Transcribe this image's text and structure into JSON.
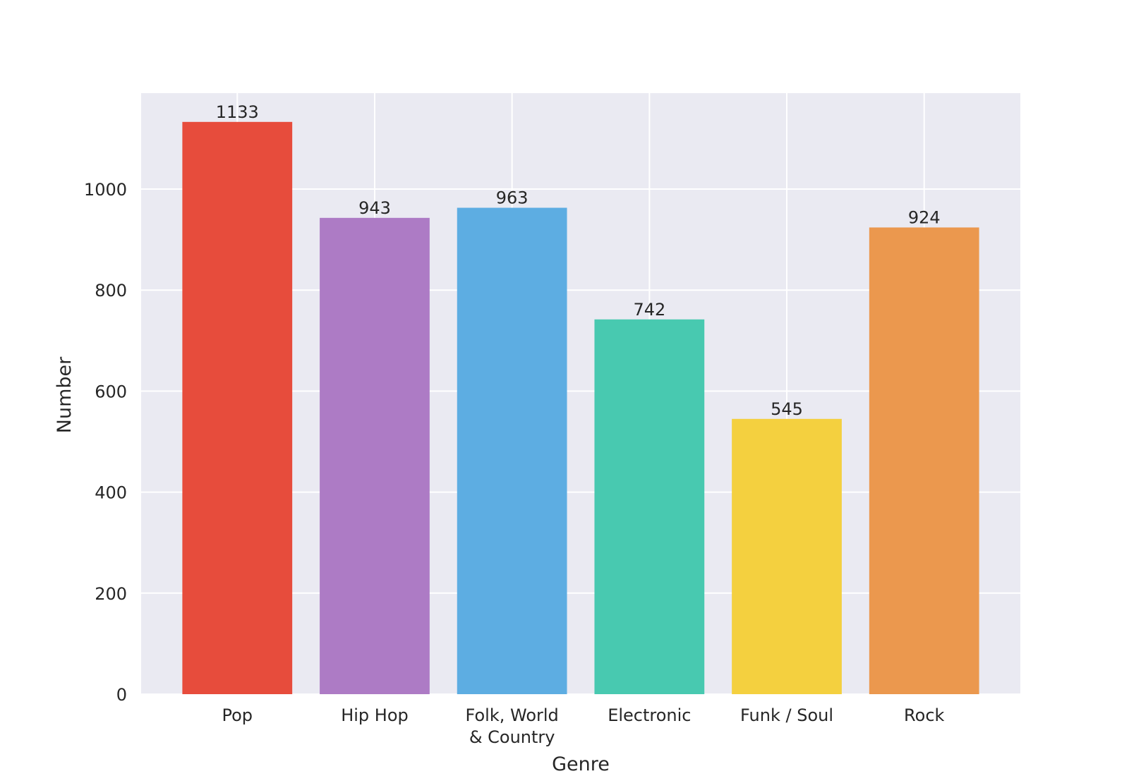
{
  "chart_data": {
    "type": "bar",
    "categories": [
      [
        "Pop"
      ],
      [
        "Hip Hop"
      ],
      [
        "Folk, World",
        "& Country"
      ],
      [
        "Electronic"
      ],
      [
        "Funk / Soul"
      ],
      [
        "Rock"
      ]
    ],
    "values": [
      1133,
      943,
      963,
      742,
      545,
      924
    ],
    "value_labels": [
      "1133",
      "943",
      "963",
      "742",
      "545",
      "924"
    ],
    "colors": [
      "#e74c3c",
      "#ad7bc5",
      "#5dade2",
      "#48c9b0",
      "#f4d03f",
      "#eb984e"
    ],
    "xlabel": "Genre",
    "ylabel": "Number",
    "ylim": [
      0,
      1190
    ],
    "yticks": [
      0,
      200,
      400,
      600,
      800,
      1000
    ],
    "ytick_labels": [
      "0",
      "200",
      "400",
      "600",
      "800",
      "1000"
    ],
    "grid": true,
    "background": "#eaeaf2",
    "grid_color": "#ffffff",
    "text_color": "#262626"
  }
}
